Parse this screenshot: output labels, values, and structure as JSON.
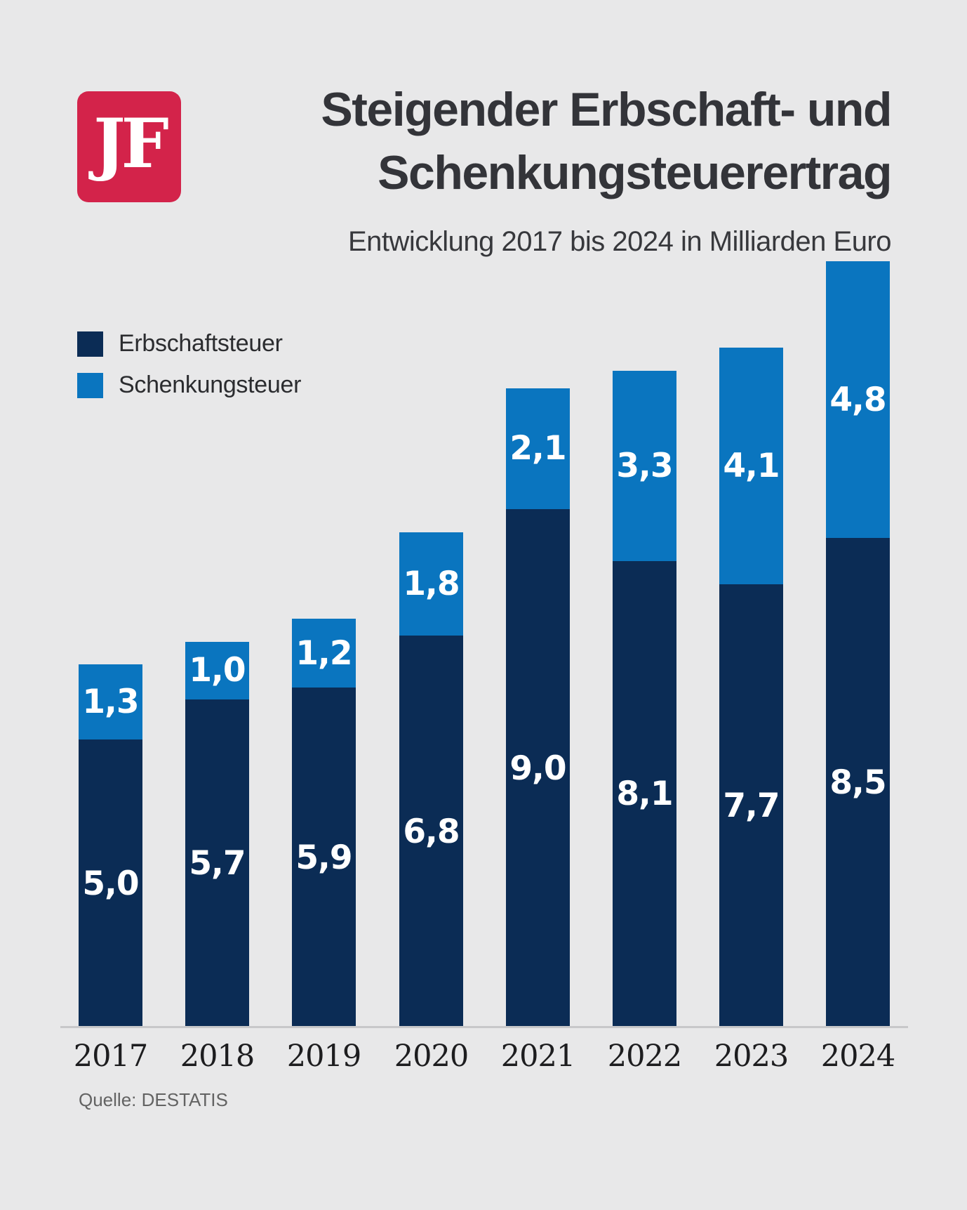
{
  "page": {
    "background_color": "#e8e8e9"
  },
  "header": {
    "logo_text": "JF",
    "logo_color": "#d3234a",
    "title_line1": "Steigender Erbschaft- und",
    "title_line2": "Schenkungsteuerertrag",
    "subtitle": "Entwicklung 2017 bis 2024 in Milliarden Euro"
  },
  "legend": {
    "items": [
      {
        "label": "Erbschaftsteuer",
        "color": "#0b2c55"
      },
      {
        "label": "Schenkungsteuer",
        "color": "#0a75bf"
      }
    ]
  },
  "chart_data": {
    "type": "bar",
    "stacked": true,
    "title": "Steigender Erbschaft- und Schenkungsteuerertrag",
    "subtitle": "Entwicklung 2017 bis 2024 in Milliarden Euro",
    "unit": "Milliarden Euro",
    "categories": [
      "2017",
      "2018",
      "2019",
      "2020",
      "2021",
      "2022",
      "2023",
      "2024"
    ],
    "series": [
      {
        "name": "Erbschaftsteuer",
        "color": "#0b2c55",
        "values": [
          5.0,
          5.7,
          5.9,
          6.8,
          9.0,
          8.1,
          7.7,
          8.5
        ],
        "labels": [
          "5,0",
          "5,7",
          "5,9",
          "6,8",
          "9,0",
          "8,1",
          "7,7",
          "8,5"
        ]
      },
      {
        "name": "Schenkungsteuer",
        "color": "#0a75bf",
        "values": [
          1.3,
          1.0,
          1.2,
          1.8,
          2.1,
          3.3,
          4.1,
          4.8
        ],
        "labels": [
          "1,3",
          "1,0",
          "1,2",
          "1,8",
          "2,1",
          "3,3",
          "4,1",
          "4,8"
        ]
      }
    ],
    "totals": [
      6.3,
      6.7,
      7.1,
      8.6,
      11.1,
      11.4,
      11.8,
      13.3
    ],
    "ylim": [
      0,
      13.5
    ],
    "grid": false,
    "legend_position": "top-left",
    "value_label_color": "#ffffff",
    "axis_line_color": "#c8c8ca"
  },
  "footer": {
    "source": "Quelle: DESTATIS"
  }
}
